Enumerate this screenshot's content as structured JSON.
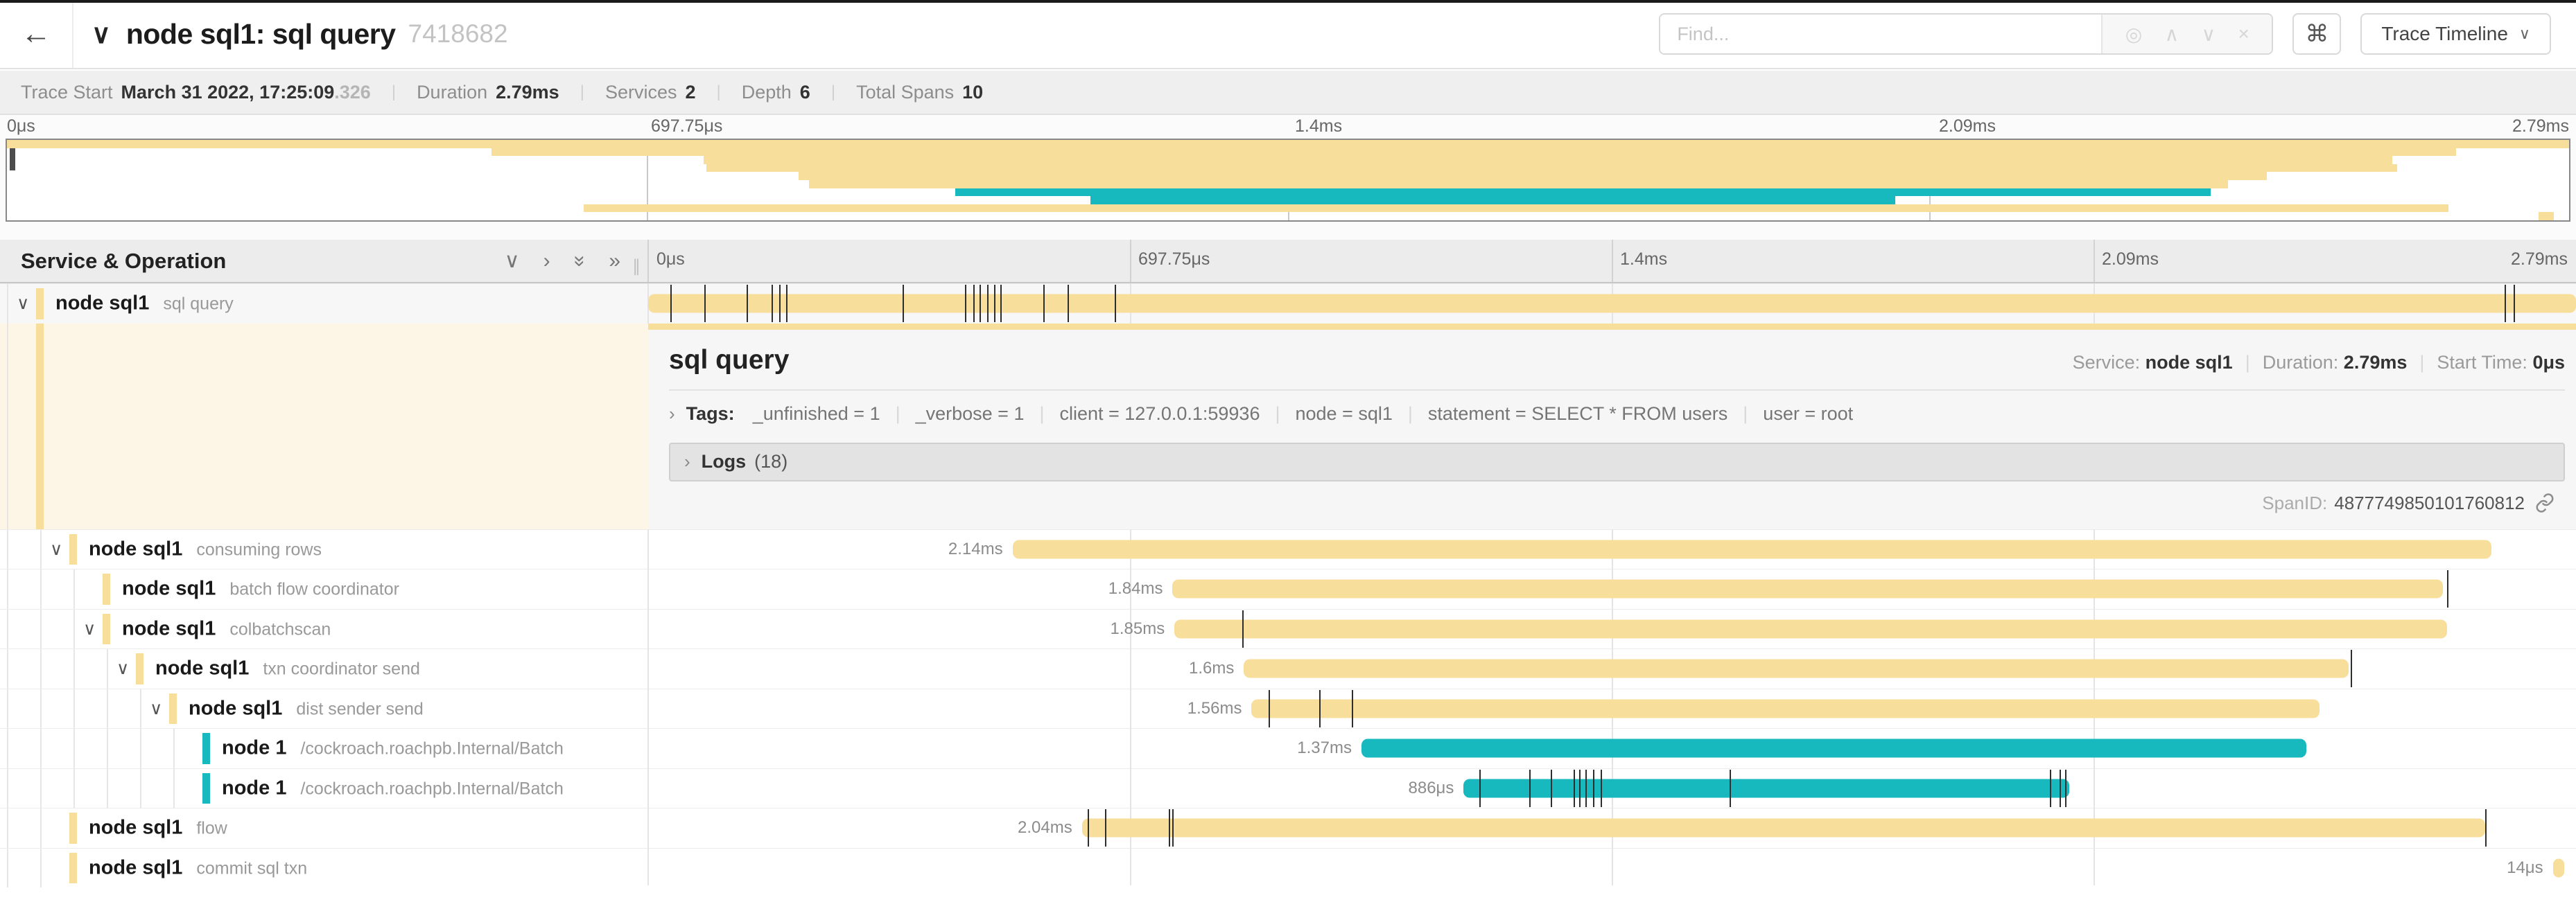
{
  "header": {
    "back": "←",
    "collapse_chevron": "∨",
    "title": "node sql1: sql query",
    "trace_id": "7418682",
    "find_placeholder": "Find...",
    "kbd_hint": "⌘",
    "view_selector": "Trace Timeline"
  },
  "summary": {
    "items": [
      {
        "label": "Trace Start",
        "value": "March 31 2022, 17:25:09",
        "suffix": ".326"
      },
      {
        "label": "Duration",
        "value": "2.79ms",
        "suffix": ""
      },
      {
        "label": "Services",
        "value": "2",
        "suffix": ""
      },
      {
        "label": "Depth",
        "value": "6",
        "suffix": ""
      },
      {
        "label": "Total Spans",
        "value": "10",
        "suffix": ""
      }
    ]
  },
  "ruler": {
    "ticks": [
      "0μs",
      "697.75μs",
      "1.4ms",
      "2.09ms",
      "2.79ms"
    ]
  },
  "timeline_header": {
    "title": "Service & Operation"
  },
  "detail": {
    "title": "sql query",
    "service_label": "Service:",
    "service": "node sql1",
    "duration_label": "Duration:",
    "duration": "2.79ms",
    "start_label": "Start Time:",
    "start": "0μs",
    "tags_label": "Tags:",
    "tags": [
      {
        "key": "_unfinished",
        "value": "1"
      },
      {
        "key": "_verbose",
        "value": "1"
      },
      {
        "key": "client",
        "value": "127.0.0.1:59936"
      },
      {
        "key": "node",
        "value": "sql1"
      },
      {
        "key": "statement",
        "value": "SELECT * FROM users"
      },
      {
        "key": "user",
        "value": "root"
      }
    ],
    "logs_label": "Logs",
    "logs_count": "(18)",
    "span_id_label": "SpanID:",
    "span_id": "4877749850101760812"
  },
  "colors": {
    "tan": "#F8DE9B",
    "teal": "#17B8BE"
  },
  "spans": [
    {
      "service": "node sql1",
      "operation": "sql query",
      "depth": 0,
      "color": "tan",
      "chevron": true,
      "start_pct": 0,
      "end_pct": 100,
      "duration_label": "",
      "ticks": [
        1.15,
        2.9,
        5.1,
        6.4,
        6.8,
        7.15,
        13.2,
        16.45,
        16.85,
        17.2,
        17.6,
        17.95,
        18.25,
        20.5,
        21.75,
        24.2,
        96.3,
        96.75
      ]
    },
    {
      "service": "node sql1",
      "operation": "consuming rows",
      "depth": 1,
      "color": "tan",
      "chevron": true,
      "start_pct": 18.9,
      "end_pct": 95.6,
      "duration_label": "2.14ms",
      "ticks": []
    },
    {
      "service": "node sql1",
      "operation": "batch flow coordinator",
      "depth": 2,
      "color": "tan",
      "chevron": false,
      "start_pct": 27.2,
      "end_pct": 93.1,
      "duration_label": "1.84ms",
      "ticks": [
        93.3
      ]
    },
    {
      "service": "node sql1",
      "operation": "colbatchscan",
      "depth": 2,
      "color": "tan",
      "chevron": true,
      "start_pct": 27.3,
      "end_pct": 93.3,
      "duration_label": "1.85ms",
      "ticks": [
        30.8
      ]
    },
    {
      "service": "node sql1",
      "operation": "txn coordinator send",
      "depth": 3,
      "color": "tan",
      "chevron": true,
      "start_pct": 30.9,
      "end_pct": 88.2,
      "duration_label": "1.6ms",
      "ticks": [
        88.3
      ]
    },
    {
      "service": "node sql1",
      "operation": "dist sender send",
      "depth": 4,
      "color": "tan",
      "chevron": true,
      "start_pct": 31.3,
      "end_pct": 86.7,
      "duration_label": "1.56ms",
      "ticks": [
        32.2,
        34.8,
        36.5
      ]
    },
    {
      "service": "node 1",
      "operation": "/cockroach.roachpb.Internal/Batch",
      "depth": 5,
      "color": "teal",
      "chevron": false,
      "start_pct": 37.0,
      "end_pct": 86.0,
      "duration_label": "1.37ms",
      "ticks": []
    },
    {
      "service": "node 1",
      "operation": "/cockroach.roachpb.Internal/Batch",
      "depth": 5,
      "color": "teal",
      "chevron": false,
      "start_pct": 42.3,
      "end_pct": 73.7,
      "duration_label": "886μs",
      "ticks": [
        43.1,
        45.7,
        46.8,
        48.0,
        48.3,
        48.6,
        49.0,
        49.4,
        56.1,
        72.7,
        73.2,
        73.5
      ]
    },
    {
      "service": "node sql1",
      "operation": "flow",
      "depth": 1,
      "color": "tan",
      "chevron": false,
      "start_pct": 22.5,
      "end_pct": 95.3,
      "duration_label": "2.04ms",
      "ticks": [
        22.8,
        23.7,
        27.0,
        27.2,
        95.3
      ]
    },
    {
      "service": "node sql1",
      "operation": "commit sql txn",
      "depth": 1,
      "color": "tan",
      "chevron": false,
      "start_pct": 98.8,
      "end_pct": 99.4,
      "duration_label": "14μs",
      "ticks": []
    }
  ]
}
